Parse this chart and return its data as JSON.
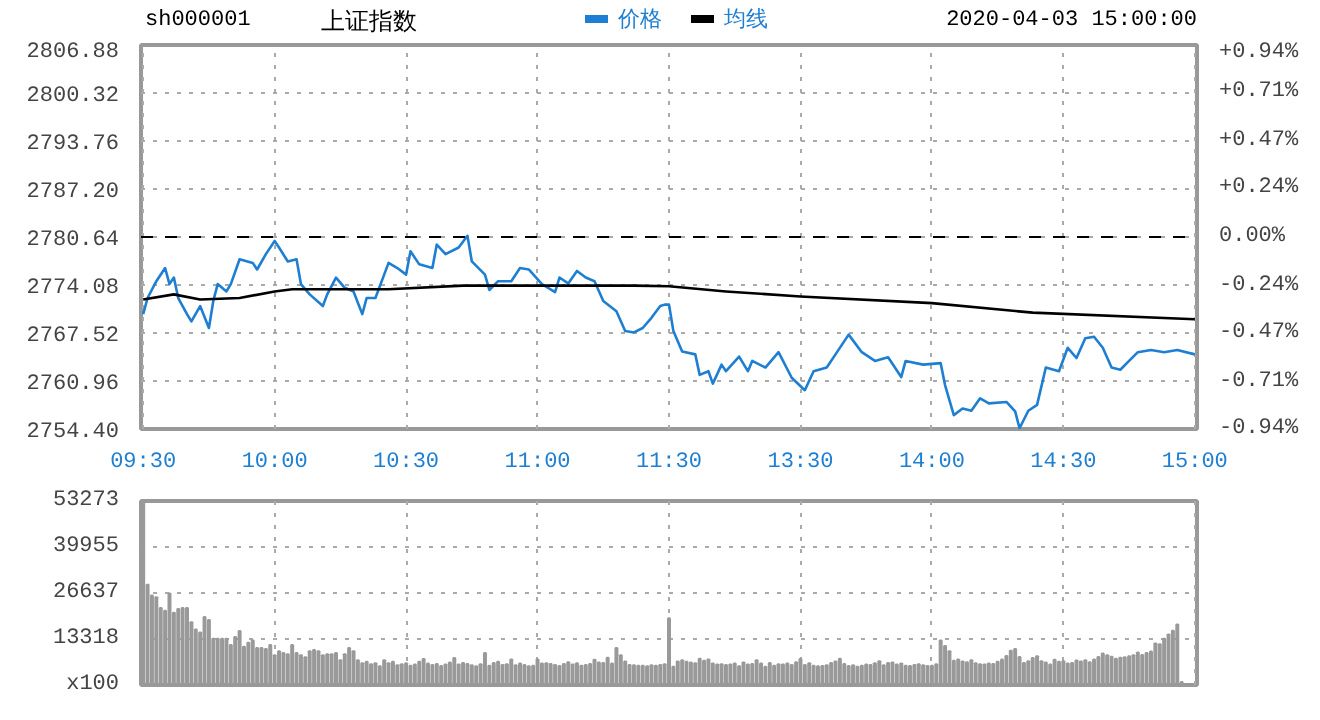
{
  "chart_data": [
    {
      "type": "line",
      "title": "上证指数",
      "subtitle": "sh000001",
      "annotations": [
        "2020-04-03 15:00:00"
      ],
      "categories": [
        "09:30",
        null,
        null,
        null,
        null,
        null,
        null,
        null,
        null,
        null,
        null,
        null,
        null,
        null,
        null,
        null,
        null,
        null,
        null,
        null,
        null,
        null,
        null,
        null,
        null,
        null,
        null,
        null,
        null,
        null,
        "10:00",
        null,
        null,
        null,
        null,
        null,
        null,
        null,
        null,
        null,
        null,
        null,
        null,
        null,
        null,
        null,
        null,
        null,
        null,
        null,
        null,
        null,
        null,
        null,
        null,
        null,
        null,
        null,
        null,
        null,
        "10:30",
        null,
        null,
        null,
        null,
        null,
        null,
        null,
        null,
        null,
        null,
        null,
        null,
        null,
        null,
        null,
        null,
        null,
        null,
        null,
        null,
        null,
        null,
        null,
        null,
        null,
        null,
        null,
        null,
        null,
        "11:00",
        null,
        null,
        null,
        null,
        null,
        null,
        null,
        null,
        null,
        null,
        null,
        null,
        null,
        null,
        null,
        null,
        null,
        null,
        null,
        null,
        null,
        null,
        null,
        null,
        null,
        null,
        null,
        null,
        null,
        "11:30",
        null,
        null,
        null,
        null,
        null,
        null,
        null,
        null,
        null,
        null,
        null,
        null,
        null,
        null,
        null,
        null,
        null,
        null,
        null,
        null,
        null,
        null,
        null,
        null,
        null,
        null,
        null,
        null,
        null,
        "13:30",
        null,
        null,
        null,
        null,
        null,
        null,
        null,
        null,
        null,
        null,
        null,
        null,
        null,
        null,
        null,
        null,
        null,
        null,
        null,
        null,
        null,
        null,
        null,
        null,
        null,
        null,
        null,
        null,
        null,
        "14:00",
        null,
        null,
        null,
        null,
        null,
        null,
        null,
        null,
        null,
        null,
        null,
        null,
        null,
        null,
        null,
        null,
        null,
        null,
        null,
        null,
        null,
        null,
        null,
        null,
        null,
        null,
        null,
        null,
        null,
        "14:30",
        null,
        null,
        null,
        null,
        null,
        null,
        null,
        null,
        null,
        null,
        null,
        null,
        null,
        null,
        null,
        null,
        null,
        null,
        null,
        null,
        null,
        null,
        null,
        null,
        null,
        null,
        null,
        null,
        null,
        "15:00"
      ],
      "ylim": [
        2754.4,
        2806.88
      ],
      "yticks": [
        {
          "value": 2806.88,
          "label": "2806.88"
        },
        {
          "value": 2800.32,
          "label": "2800.32"
        },
        {
          "value": 2793.76,
          "label": "2793.76"
        },
        {
          "value": 2787.2,
          "label": "2787.20"
        },
        {
          "value": 2780.64,
          "label": "2780.64"
        },
        {
          "value": 2774.08,
          "label": "2774.08"
        },
        {
          "value": 2767.52,
          "label": "2767.52"
        },
        {
          "value": 2760.96,
          "label": "2760.96"
        },
        {
          "value": 2754.4,
          "label": "2754.40"
        }
      ],
      "y2lim": [
        -0.94,
        0.94
      ],
      "y2ticks": [
        {
          "value": 0.94,
          "label": "+0.94%"
        },
        {
          "value": 0.71,
          "label": "+0.71%"
        },
        {
          "value": 0.47,
          "label": "+0.47%"
        },
        {
          "value": 0.24,
          "label": "+0.24%"
        },
        {
          "value": 0,
          "label": "0.00%"
        },
        {
          "value": -0.24,
          "label": "-0.24%"
        },
        {
          "value": -0.47,
          "label": "-0.47%"
        },
        {
          "value": -0.71,
          "label": "-0.71%"
        },
        {
          "value": -0.94,
          "label": "-0.94%"
        }
      ],
      "grid": true,
      "legend": "top",
      "marker": "none",
      "line_style": "solid",
      "ref_lines": [
        {
          "axis": "y",
          "value": 2780.64,
          "label": null,
          "color": "#000000",
          "line_style": "dashed"
        }
      ],
      "series": [
        {
          "name": "价格",
          "color": "#1e7fd2",
          "values": [
            2770.1,
            2772.3,
            null,
            2774.6,
            null,
            2776.4,
            2774.2,
            2775.1,
            2772.3,
            null,
            2770.1,
            2769.1,
            null,
            2771.2,
            null,
            2768.2,
            2771.9,
            2774.2,
            null,
            2773.2,
            2774.2,
            null,
            2777.6,
            null,
            null,
            2777.1,
            2776.2,
            null,
            2778.3,
            null,
            2780.1,
            2779.2,
            null,
            2777.3,
            null,
            2777.6,
            2774.2,
            null,
            2772.8,
            null,
            null,
            2771.2,
            2772.8,
            null,
            2775.1,
            null,
            2773.7,
            null,
            2773.2,
            null,
            2770.1,
            2772.3,
            null,
            2772.3,
            null,
            null,
            2777.1,
            null,
            2776.4,
            null,
            2775.5,
            2778.7,
            null,
            2776.9,
            null,
            null,
            2776.4,
            2779.6,
            null,
            2778.3,
            null,
            null,
            2779.2,
            null,
            2780.8,
            2777.3,
            null,
            null,
            2775.5,
            2773.4,
            null,
            2774.6,
            null,
            null,
            2774.6,
            null,
            2776.4,
            null,
            2776.2,
            null,
            null,
            2774.2,
            null,
            null,
            2773.1,
            2775.1,
            null,
            2774.3,
            null,
            2776.0,
            null,
            2775.1,
            null,
            2774.6,
            null,
            2771.9,
            null,
            null,
            2770.5,
            null,
            2767.8,
            null,
            2767.6,
            null,
            2768.2,
            null,
            2769.6,
            null,
            2771.2,
            2771.4,
            2771.4,
            2767.8,
            null,
            2765.0,
            null,
            null,
            2764.6,
            2761.8,
            null,
            2762.3,
            2760.6,
            null,
            2763.2,
            2762.3,
            null,
            null,
            2764.3,
            null,
            2762.3,
            2763.7,
            null,
            null,
            2762.8,
            null,
            null,
            2764.9,
            null,
            null,
            2761.4,
            null,
            null,
            2759.7,
            null,
            2762.3,
            null,
            null,
            2762.8,
            null,
            2764.6,
            null,
            null,
            2767.3,
            null,
            null,
            2764.9,
            null,
            null,
            2763.7,
            null,
            null,
            2764.2,
            null,
            null,
            2761.5,
            2763.7,
            null,
            null,
            null,
            2763.2,
            null,
            null,
            null,
            2763.4,
            2760.4,
            null,
            2756.3,
            null,
            2757.2,
            null,
            2756.9,
            null,
            2758.6,
            null,
            2757.9,
            null,
            null,
            null,
            2758.1,
            null,
            2756.8,
            2754.5,
            null,
            2756.9,
            null,
            2757.7,
            null,
            2762.8,
            null,
            null,
            2762.3,
            null,
            2765.5,
            null,
            2764.1,
            null,
            2766.8,
            null,
            2767.0,
            null,
            2765.5,
            null,
            2762.8,
            null,
            2762.5,
            null,
            2763.7,
            null,
            2764.9,
            null,
            null,
            2765.2,
            null,
            null,
            2764.9,
            null,
            null,
            2765.2,
            null,
            null,
            null,
            2764.6
          ]
        },
        {
          "name": "均线",
          "color": "#000000",
          "values": [
            2772.1,
            null,
            null,
            null,
            null,
            null,
            null,
            2772.8,
            null,
            null,
            null,
            null,
            null,
            2772.1,
            null,
            null,
            null,
            null,
            null,
            null,
            null,
            null,
            2772.3,
            null,
            null,
            null,
            null,
            null,
            null,
            null,
            2773.2,
            null,
            null,
            null,
            2773.5,
            null,
            null,
            null,
            null,
            null,
            null,
            null,
            null,
            null,
            null,
            null,
            null,
            null,
            null,
            null,
            null,
            null,
            null,
            null,
            null,
            null,
            2773.5,
            null,
            null,
            null,
            null,
            null,
            null,
            null,
            null,
            null,
            null,
            null,
            null,
            null,
            null,
            null,
            null,
            2774.0,
            null,
            null,
            null,
            null,
            null,
            null,
            null,
            null,
            null,
            null,
            null,
            null,
            null,
            null,
            null,
            null,
            null,
            null,
            null,
            null,
            null,
            null,
            null,
            null,
            null,
            null,
            null,
            null,
            null,
            null,
            null,
            null,
            null,
            null,
            null,
            null,
            null,
            null,
            2774.0,
            null,
            null,
            null,
            null,
            null,
            null,
            null,
            2773.9,
            null,
            null,
            null,
            null,
            null,
            null,
            null,
            null,
            null,
            null,
            null,
            null,
            2773.2,
            null,
            null,
            null,
            null,
            null,
            null,
            null,
            null,
            null,
            null,
            null,
            null,
            null,
            null,
            null,
            null,
            2772.5,
            null,
            null,
            null,
            null,
            null,
            null,
            null,
            null,
            null,
            null,
            null,
            null,
            null,
            null,
            null,
            null,
            null,
            null,
            null,
            null,
            null,
            null,
            null,
            null,
            null,
            null,
            null,
            null,
            null,
            2771.6,
            null,
            null,
            null,
            null,
            null,
            null,
            null,
            null,
            null,
            null,
            null,
            null,
            null,
            null,
            null,
            null,
            null,
            null,
            null,
            null,
            null,
            null,
            2770.3,
            null,
            null,
            null,
            null,
            null,
            null,
            null,
            null,
            null,
            null,
            null,
            null,
            null,
            null,
            null,
            null,
            null,
            null,
            null,
            null,
            null,
            null,
            null,
            null,
            null,
            null,
            null,
            null,
            null,
            null,
            null,
            null,
            null,
            null,
            null,
            null,
            2769.4
          ]
        }
      ]
    },
    {
      "type": "bar",
      "grid": true,
      "categories": [
        null,
        null,
        null,
        null,
        null,
        null,
        null,
        null,
        null,
        null,
        null,
        null,
        null,
        null,
        null,
        null,
        null,
        null,
        null,
        null,
        null,
        null,
        null,
        null,
        null,
        null,
        null,
        null,
        null,
        null,
        null,
        null,
        null,
        null,
        null,
        null,
        null,
        null,
        null,
        null,
        null,
        null,
        null,
        null,
        null,
        null,
        null,
        null,
        null,
        null,
        null,
        null,
        null,
        null,
        null,
        null,
        null,
        null,
        null,
        null,
        null,
        null,
        null,
        null,
        null,
        null,
        null,
        null,
        null,
        null,
        null,
        null,
        null,
        null,
        null,
        null,
        null,
        null,
        null,
        null,
        null,
        null,
        null,
        null,
        null,
        null,
        null,
        null,
        null,
        null,
        null,
        null,
        null,
        null,
        null,
        null,
        null,
        null,
        null,
        null,
        null,
        null,
        null,
        null,
        null,
        null,
        null,
        null,
        null,
        null,
        null,
        null,
        null,
        null,
        null,
        null,
        null,
        null,
        null,
        null,
        null,
        null,
        null,
        null,
        null,
        null,
        null,
        null,
        null,
        null,
        null,
        null,
        null,
        null,
        null,
        null,
        null,
        null,
        null,
        null,
        null,
        null,
        null,
        null,
        null,
        null,
        null,
        null,
        null,
        null,
        null,
        null,
        null,
        null,
        null,
        null,
        null,
        null,
        null,
        null,
        null,
        null,
        null,
        null,
        null,
        null,
        null,
        null,
        null,
        null,
        null,
        null,
        null,
        null,
        null,
        null,
        null,
        null,
        null,
        null,
        null,
        null,
        null,
        null,
        null,
        null,
        null,
        null,
        null,
        null,
        null,
        null,
        null,
        null,
        null,
        null,
        null,
        null,
        null,
        null,
        null,
        null,
        null,
        null,
        null,
        null,
        null,
        null,
        null,
        null,
        null,
        null,
        null,
        null,
        null,
        null,
        null,
        null,
        null,
        null,
        null,
        null,
        null,
        null,
        null,
        null,
        null,
        null,
        null,
        null,
        null,
        null,
        null,
        null,
        null,
        null,
        null,
        null,
        null,
        null,
        null
      ],
      "ylim": [
        0,
        53273
      ],
      "yticks": [
        {
          "value": 0,
          "label": "x100"
        },
        13318,
        26637,
        39955,
        53273
      ],
      "series": [
        {
          "color": "#999999",
          "values": [
            53000,
            29000,
            25900,
            25400,
            22300,
            21500,
            26500,
            20900,
            22000,
            22300,
            22300,
            18200,
            16100,
            15200,
            19700,
            18800,
            13400,
            13400,
            13400,
            13400,
            11600,
            13900,
            15600,
            11100,
            12200,
            12900,
            10700,
            10700,
            10400,
            11600,
            8600,
            9800,
            9300,
            8900,
            11600,
            9300,
            8600,
            8000,
            9800,
            10100,
            9800,
            8600,
            8900,
            8900,
            9300,
            7200,
            8900,
            10700,
            9800,
            7200,
            6300,
            6700,
            6000,
            6300,
            5400,
            7200,
            6300,
            6700,
            5700,
            6000,
            6300,
            5600,
            5900,
            6700,
            7500,
            6200,
            5800,
            6100,
            5500,
            5900,
            6500,
            7800,
            5900,
            6400,
            6100,
            5700,
            5400,
            6000,
            9300,
            5600,
            6400,
            6700,
            5800,
            6000,
            7400,
            5700,
            6200,
            5800,
            5400,
            5600,
            7400,
            6200,
            6300,
            6100,
            5800,
            5500,
            6100,
            6600,
            5900,
            6300,
            5600,
            5800,
            6100,
            7300,
            6500,
            6400,
            7900,
            6200,
            10700,
            8600,
            6800,
            5800,
            5700,
            5600,
            5600,
            5400,
            5700,
            5600,
            5800,
            6000,
            19300,
            5300,
            6800,
            7200,
            6700,
            6500,
            6300,
            7600,
            7000,
            7400,
            6200,
            5900,
            6000,
            5800,
            5900,
            6200,
            5400,
            6500,
            5900,
            6100,
            7200,
            6200,
            5300,
            6400,
            5600,
            6000,
            5900,
            6200,
            5800,
            6600,
            7500,
            5800,
            6300,
            5600,
            5400,
            5500,
            5700,
            6400,
            6800,
            7600,
            6100,
            5500,
            5700,
            5300,
            5600,
            5900,
            5800,
            6300,
            6900,
            5700,
            6400,
            6500,
            5900,
            6200,
            5600,
            5500,
            5800,
            6000,
            5700,
            5500,
            5600,
            6000,
            12900,
            11300,
            9800,
            7000,
            7400,
            6800,
            6600,
            7200,
            6300,
            6000,
            5900,
            6200,
            6100,
            6700,
            7400,
            8400,
            9900,
            10400,
            8100,
            6400,
            6900,
            7800,
            8300,
            6900,
            6500,
            5900,
            7300,
            6700,
            6900,
            6200,
            6400,
            7100,
            6800,
            7200,
            6600,
            7400,
            8100,
            9100,
            8600,
            8200,
            7600,
            7900,
            8000,
            8300,
            8600,
            9400,
            8700,
            9300,
            9700,
            12000,
            11800,
            13400,
            14600,
            15700,
            17500,
            900,
            null,
            null,
            null
          ]
        }
      ]
    }
  ]
}
